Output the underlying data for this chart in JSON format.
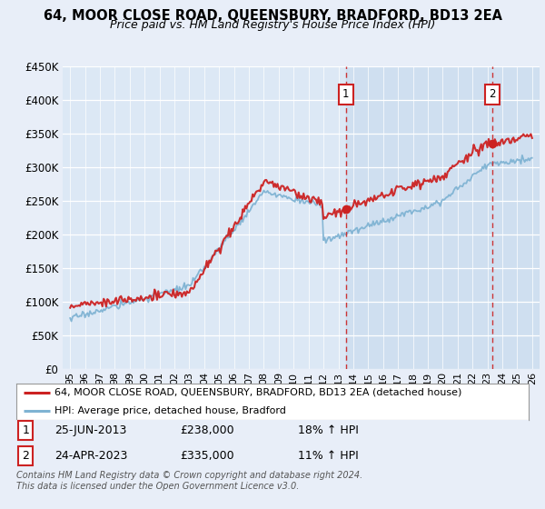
{
  "title": "64, MOOR CLOSE ROAD, QUEENSBURY, BRADFORD, BD13 2EA",
  "subtitle": "Price paid vs. HM Land Registry's House Price Index (HPI)",
  "ylabel_ticks": [
    "£0",
    "£50K",
    "£100K",
    "£150K",
    "£200K",
    "£250K",
    "£300K",
    "£350K",
    "£400K",
    "£450K"
  ],
  "ytick_values": [
    0,
    50000,
    100000,
    150000,
    200000,
    250000,
    300000,
    350000,
    400000,
    450000
  ],
  "ylim": [
    0,
    450000
  ],
  "background_color": "#e8eef8",
  "plot_bg_color": "#dce8f5",
  "plot_shade_color": "#c8daf0",
  "red_line_color": "#cc2222",
  "blue_line_color": "#7fb3d3",
  "vline_color": "#cc2222",
  "legend_entries": [
    "64, MOOR CLOSE ROAD, QUEENSBURY, BRADFORD, BD13 2EA (detached house)",
    "HPI: Average price, detached house, Bradford"
  ],
  "sale1_label": "1",
  "sale1_date": "25-JUN-2013",
  "sale1_price": "£238,000",
  "sale1_hpi": "18% ↑ HPI",
  "sale2_label": "2",
  "sale2_date": "24-APR-2023",
  "sale2_price": "£335,000",
  "sale2_hpi": "11% ↑ HPI",
  "footer": "Contains HM Land Registry data © Crown copyright and database right 2024.\nThis data is licensed under the Open Government Licence v3.0.",
  "sale1_year": 2013.5,
  "sale2_year": 2023.33,
  "sale1_price_val": 238000,
  "sale2_price_val": 335000
}
